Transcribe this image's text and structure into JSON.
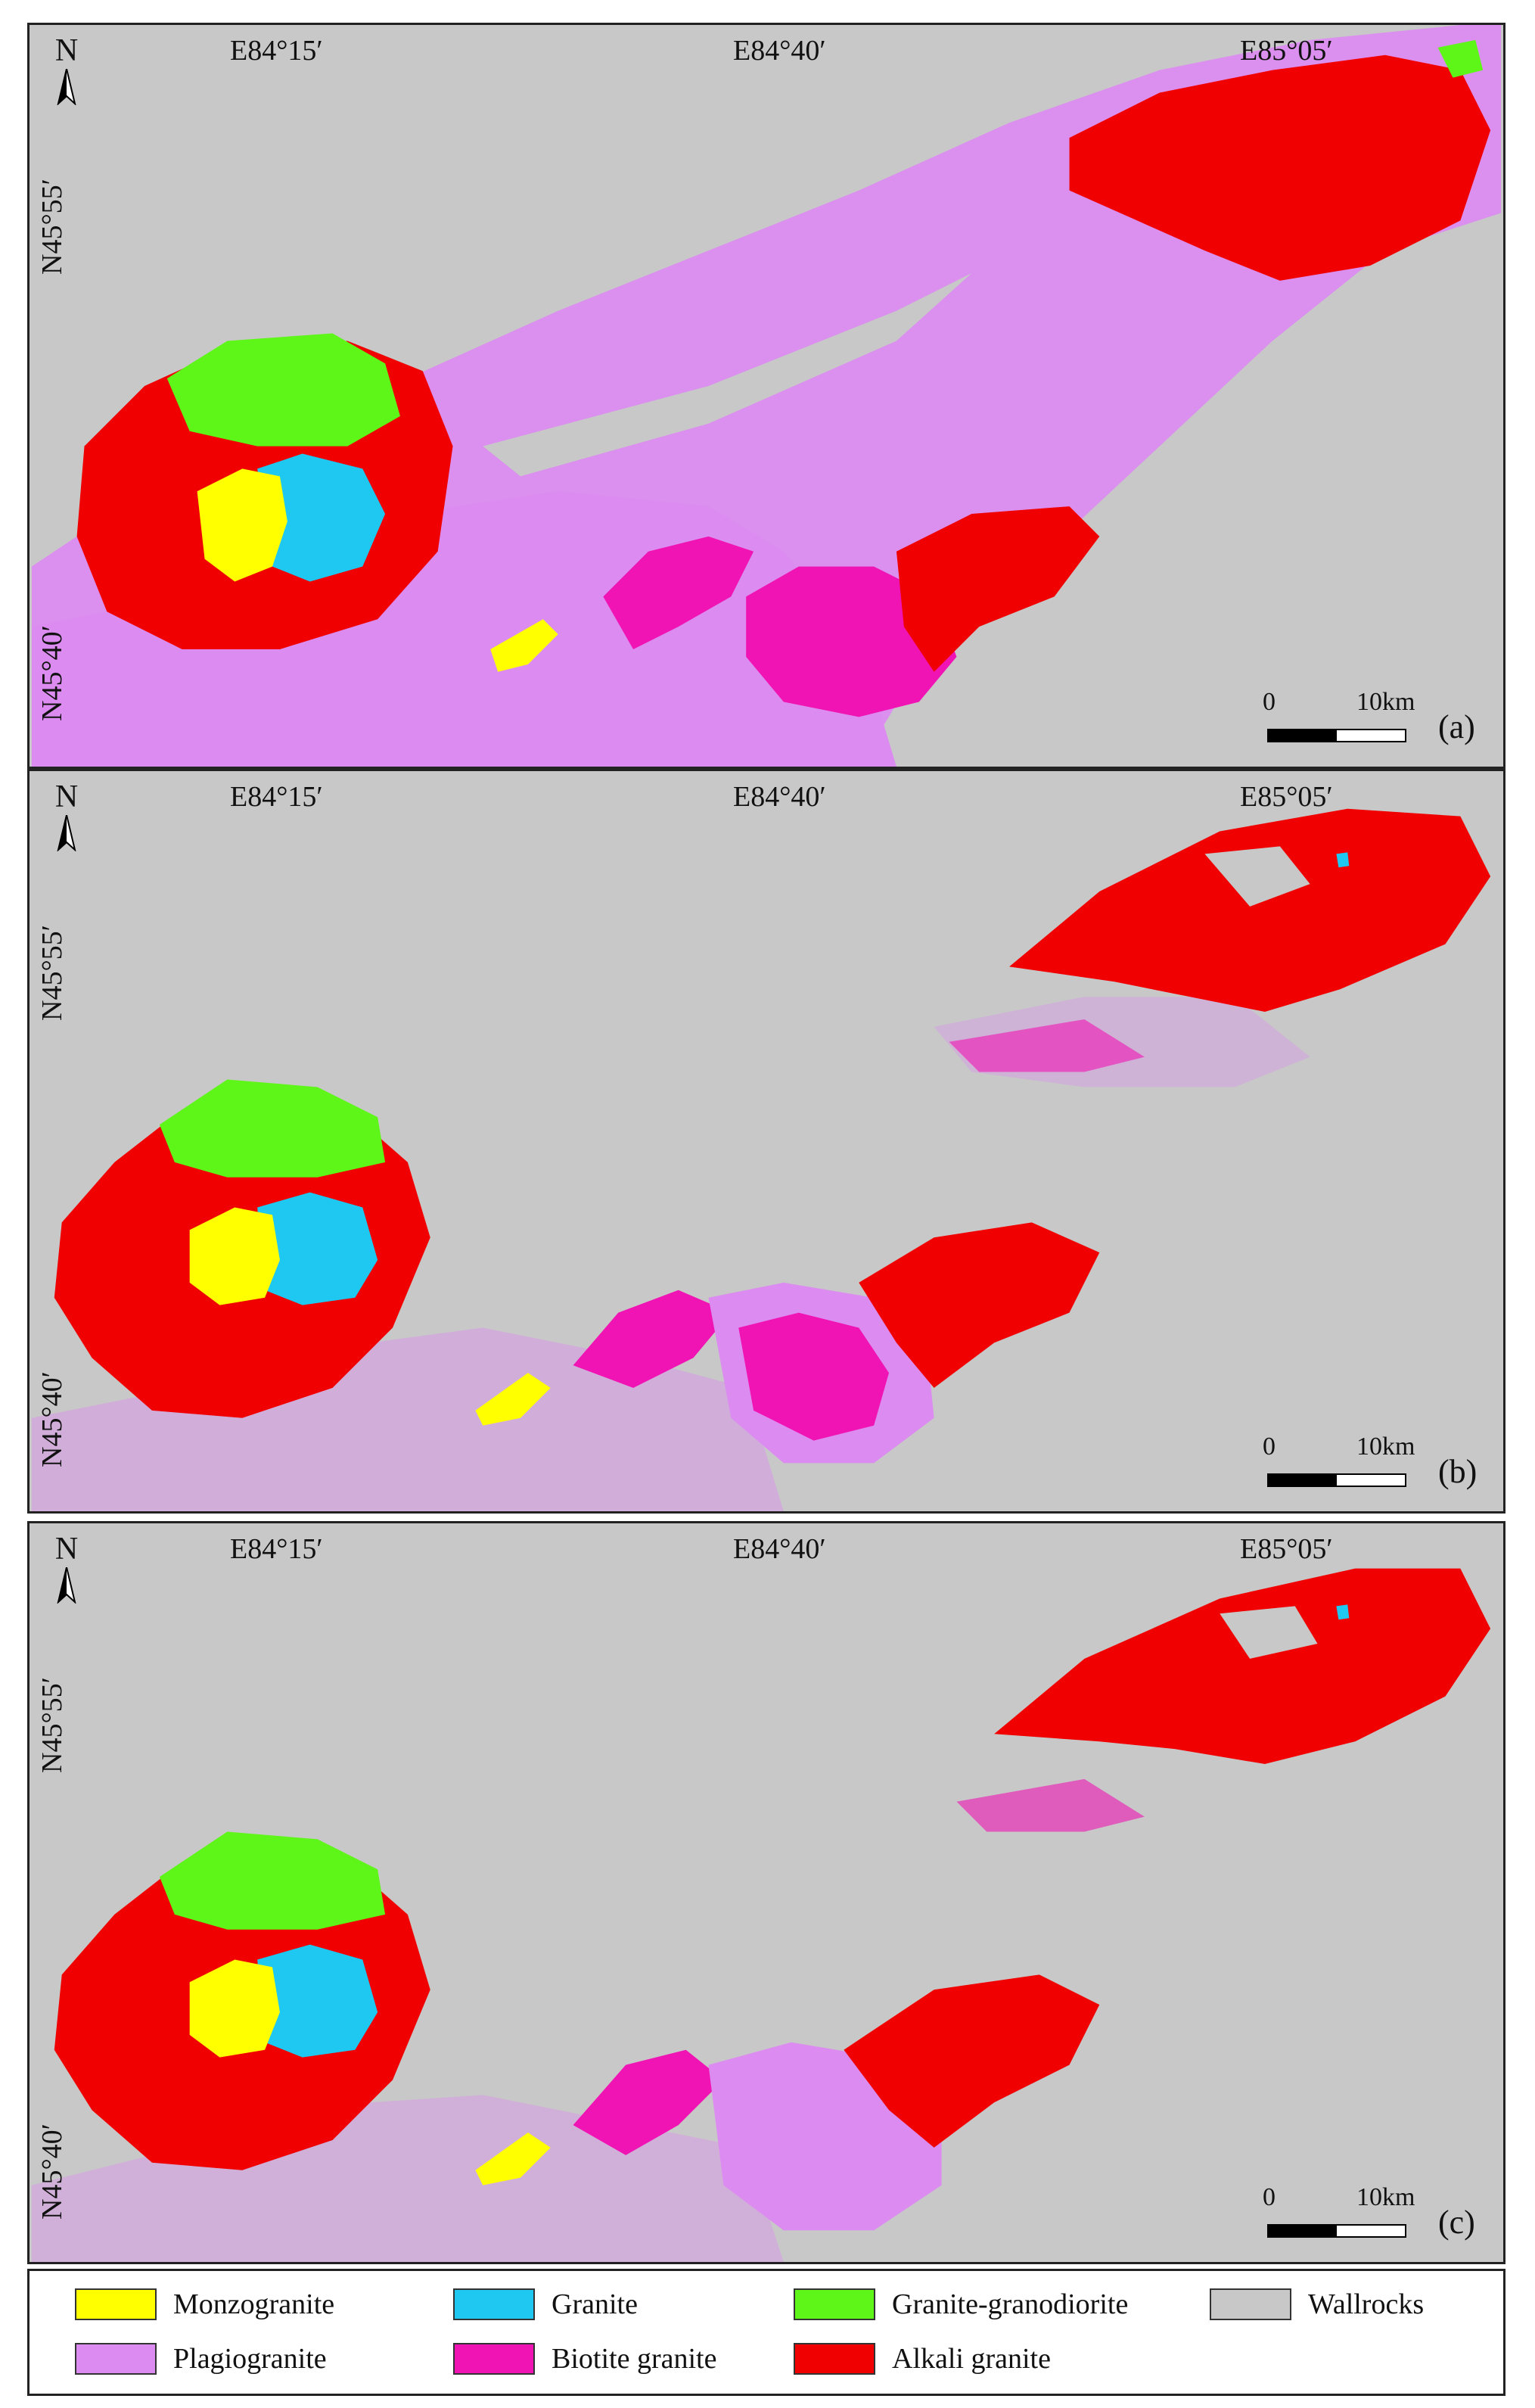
{
  "panels": [
    {
      "id": "a",
      "label": "(a)"
    },
    {
      "id": "b",
      "label": "(b)"
    },
    {
      "id": "c",
      "label": "(c)"
    }
  ],
  "map": {
    "north": "N",
    "lon_labels": [
      "E84°15′",
      "E84°40′",
      "E85°05′"
    ],
    "lat_labels": [
      "N45°55′",
      "N45°40′"
    ],
    "scale_zero": "0",
    "scale_km": "10km"
  },
  "legend": {
    "items": [
      {
        "label": "Monzogranite",
        "color": "#ffff00"
      },
      {
        "label": "Granite",
        "color": "#1ec8f0"
      },
      {
        "label": "Granite-granodiorite",
        "color": "#5ef518"
      },
      {
        "label": "Wallrocks",
        "color": "#c8c8c8"
      },
      {
        "label": "Plagiogranite",
        "color": "#dc8cf0"
      },
      {
        "label": "Biotite granite",
        "color": "#f014b4"
      },
      {
        "label": "Alkali granite",
        "color": "#f00000"
      }
    ]
  },
  "colors": {
    "wallrock": "#c8c8c8",
    "plagio": "#dc8cf0",
    "biotite": "#f014b4",
    "alkali": "#f00000",
    "granite": "#1ec8f0",
    "monzo": "#ffff00",
    "granodiorite": "#5ef518"
  }
}
